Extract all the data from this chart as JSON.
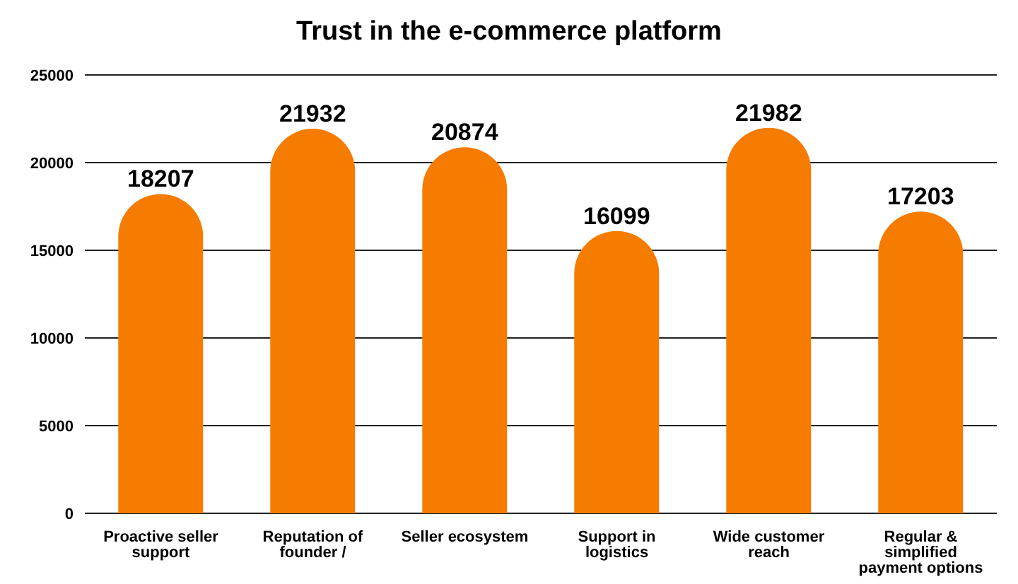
{
  "chart_data": {
    "type": "bar",
    "title": "Trust in the e-commerce platform",
    "categories": [
      "Proactive seller support",
      "Reputation of founder /",
      "Seller ecosystem",
      "Support in logistics",
      "Wide customer reach",
      "Regular & simplified payment options"
    ],
    "values": [
      18207,
      21932,
      20874,
      16099,
      21982,
      17203
    ],
    "color": "#f57c00",
    "ylim": [
      0,
      25000
    ],
    "yticks": [
      0,
      5000,
      10000,
      15000,
      20000,
      25000
    ],
    "grid": "y",
    "data_labels": true
  }
}
